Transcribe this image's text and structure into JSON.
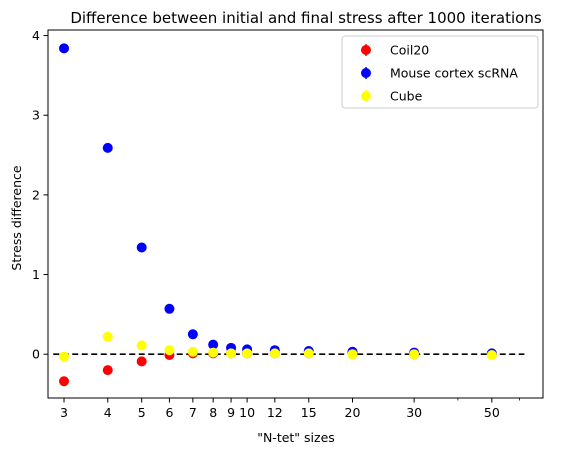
{
  "chart_data": {
    "type": "scatter",
    "title": "Difference between initial and final stress after 1000 iterations",
    "xlabel": "\"N-tet\" sizes",
    "ylabel": "Stress difference",
    "x_scale": "log",
    "xlim": [
      2.7,
      70
    ],
    "ylim": [
      -0.55,
      4.07
    ],
    "x_ticks": [
      3,
      4,
      5,
      6,
      7,
      8,
      9,
      10,
      12,
      15,
      20,
      30,
      50
    ],
    "x_tick_labels": [
      "3",
      "4",
      "5",
      "6",
      "7",
      "8",
      "9",
      "10",
      "12",
      "15",
      "20",
      "30",
      "50"
    ],
    "y_ticks": [
      0,
      1,
      2,
      3,
      4
    ],
    "y_tick_labels": [
      "0",
      "1",
      "2",
      "3",
      "4"
    ],
    "reference_line": {
      "y": 0,
      "style": "dashed",
      "color": "#000000"
    },
    "legend_position": "top-right",
    "x": [
      3,
      4,
      5,
      6,
      7,
      8,
      9,
      10,
      12,
      15,
      20,
      30,
      50
    ],
    "series": [
      {
        "name": "Coil20",
        "color": "#ff0000",
        "values": [
          -0.34,
          -0.2,
          -0.09,
          -0.01,
          0.01,
          0.01,
          0.01,
          0.01,
          0.01,
          0.01,
          0.01,
          0.0,
          0.0
        ]
      },
      {
        "name": "Mouse cortex scRNA",
        "color": "#0000ff",
        "values": [
          3.84,
          2.59,
          1.34,
          0.57,
          0.25,
          0.12,
          0.08,
          0.06,
          0.05,
          0.04,
          0.03,
          0.02,
          0.01
        ]
      },
      {
        "name": "Cube",
        "color": "#ffff00",
        "values": [
          -0.03,
          0.22,
          0.11,
          0.05,
          0.03,
          0.02,
          0.01,
          0.01,
          0.01,
          0.01,
          0.0,
          0.0,
          -0.01
        ]
      }
    ]
  }
}
